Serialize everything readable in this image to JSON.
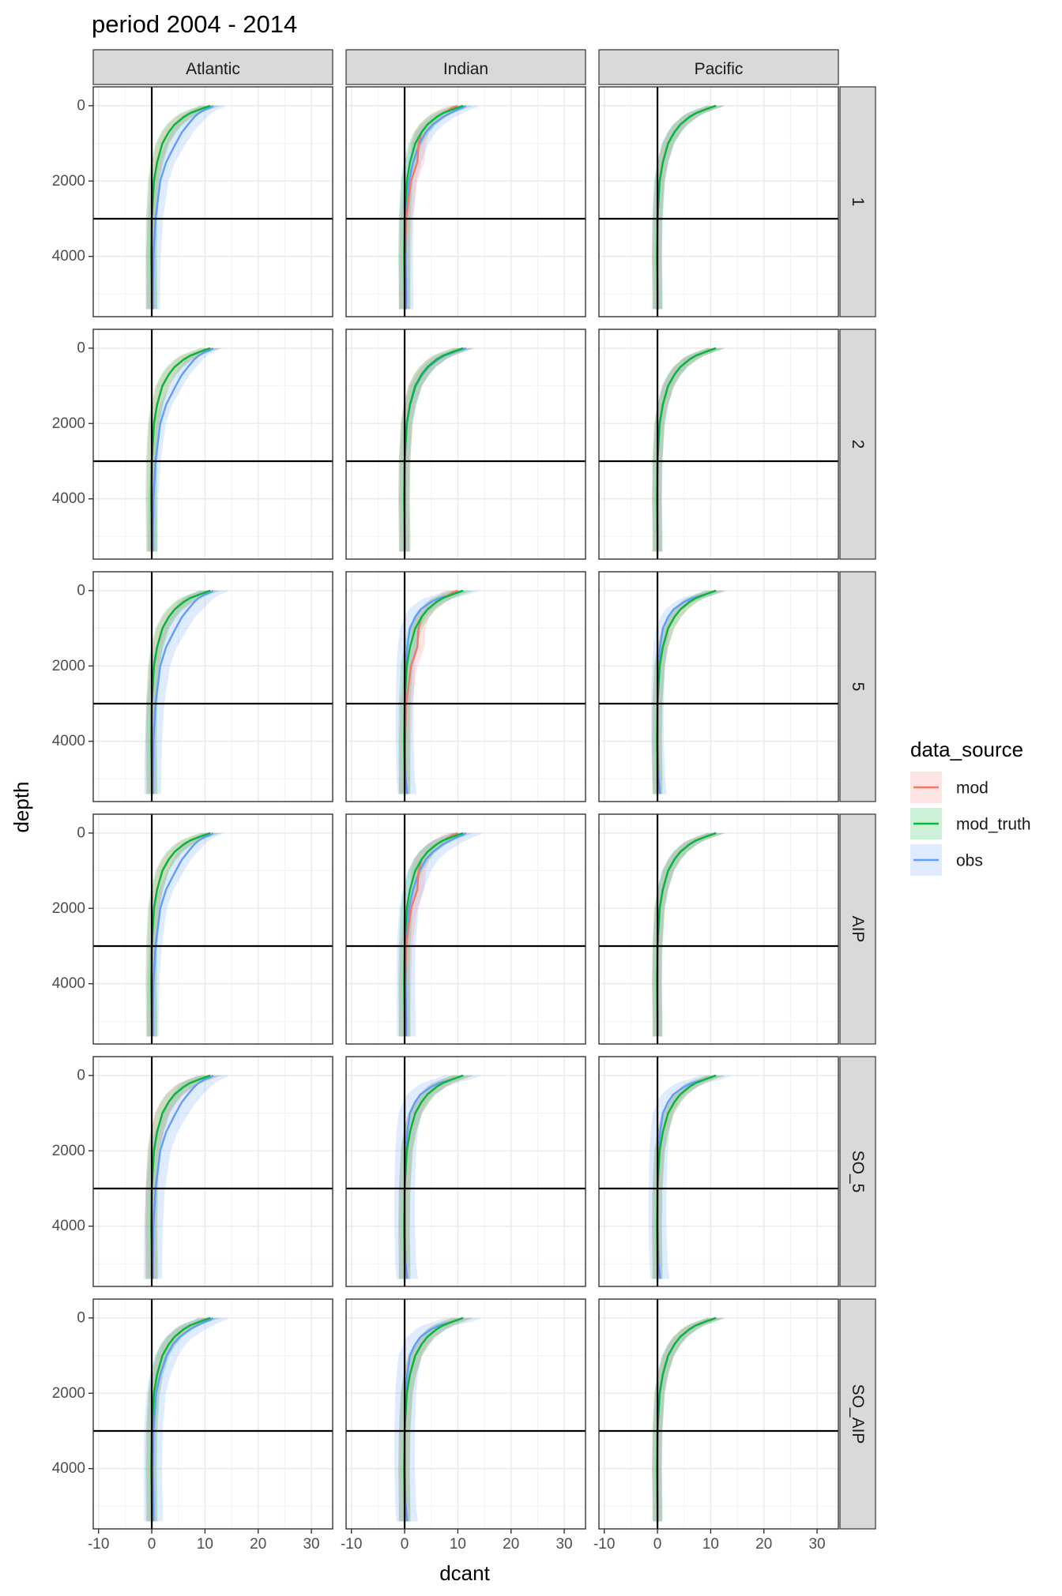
{
  "chart_data": {
    "type": "line",
    "title": "period 2004 - 2014",
    "xlabel": "dcant",
    "ylabel": "depth",
    "xlim": [
      -11,
      34
    ],
    "ylim": [
      5600,
      -500
    ],
    "y_reversed": true,
    "x_ticks": [
      -10,
      0,
      10,
      20,
      30
    ],
    "y_ticks": [
      0,
      2000,
      4000
    ],
    "x_tick_labels": [
      "-10",
      "0",
      "10",
      "20",
      "30"
    ],
    "y_tick_labels": [
      "0",
      "2000",
      "4000"
    ],
    "reference_lines": {
      "vline_x": 0,
      "hline_y": 3000
    },
    "grid": true,
    "columns": [
      "Atlantic",
      "Indian",
      "Pacific"
    ],
    "rows": [
      "1",
      "2",
      "5",
      "AIP",
      "SO_5",
      "SO_AIP"
    ],
    "legend": {
      "title": "data_source",
      "position": "right",
      "items": [
        {
          "label": "mod",
          "color": "#F8766D"
        },
        {
          "label": "mod_truth",
          "color": "#00BA38"
        },
        {
          "label": "obs",
          "color": "#619CFF"
        }
      ]
    },
    "depths": [
      0,
      50,
      100,
      200,
      300,
      500,
      700,
      1000,
      1500,
      2000,
      3000,
      4000,
      5000,
      5400
    ],
    "profile_shapes": {
      "standard": [
        11,
        10,
        9,
        7.2,
        6,
        4.3,
        3.2,
        2,
        1,
        0.4,
        0,
        -0.1,
        0,
        0
      ],
      "obs_deep": [
        11.5,
        11,
        10,
        8.8,
        8,
        6.8,
        5.7,
        4.5,
        2.7,
        1.6,
        0.7,
        0.3,
        0.2,
        0.2
      ],
      "obs_shallow_high": [
        11.5,
        11,
        10,
        8.5,
        7.2,
        5.3,
        4,
        2.8,
        1.6,
        0.8,
        0.3,
        0.2,
        0.3,
        0.3
      ],
      "obs_low_mid": [
        11,
        10,
        9,
        6.5,
        5,
        3,
        2,
        1,
        0.5,
        0.2,
        0,
        0,
        0.2,
        0.5
      ],
      "mod_mid_bump": [
        10,
        9,
        8.5,
        7.2,
        6,
        4.3,
        3.2,
        2.6,
        2.4,
        1.2,
        0.3,
        0.1,
        0,
        0
      ]
    },
    "series_by_panel": [
      [
        {
          "mod": [
            "standard",
            1.0,
            1.5
          ],
          "mod_truth": [
            "standard",
            1.0,
            1.8
          ],
          "obs": [
            "obs_deep",
            1.0,
            2.2
          ]
        },
        {
          "mod": [
            "mod_mid_bump",
            1.0,
            1.8
          ],
          "mod_truth": [
            "standard",
            1.0,
            1.8
          ],
          "obs": [
            "obs_shallow_high",
            1.0,
            2.2
          ]
        },
        {
          "mod": [
            "standard",
            1.0,
            1.4
          ],
          "mod_truth": [
            "standard",
            1.0,
            1.6
          ],
          "obs": [
            "standard",
            1.0,
            1.6
          ]
        }
      ],
      [
        {
          "mod": [
            "standard",
            1.0,
            1.5
          ],
          "mod_truth": [
            "standard",
            1.0,
            1.8
          ],
          "obs": [
            "obs_deep",
            1.0,
            1.5
          ]
        },
        {
          "mod": [
            "standard",
            1.0,
            1.8
          ],
          "mod_truth": [
            "standard",
            1.0,
            1.8
          ],
          "obs": [
            "standard",
            1.05,
            1.5
          ]
        },
        {
          "mod": [
            "standard",
            1.0,
            1.5
          ],
          "mod_truth": [
            "standard",
            1.0,
            1.6
          ],
          "obs": [
            "standard",
            1.0,
            1.4
          ]
        }
      ],
      [
        {
          "mod": [
            "standard",
            1.0,
            1.5
          ],
          "mod_truth": [
            "standard",
            1.0,
            1.8
          ],
          "obs": [
            "obs_deep",
            1.0,
            2.6
          ]
        },
        {
          "mod": [
            "mod_mid_bump",
            1.0,
            1.8
          ],
          "mod_truth": [
            "standard",
            1.0,
            1.8
          ],
          "obs": [
            "obs_low_mid",
            1.0,
            2.8
          ]
        },
        {
          "mod": [
            "standard",
            1.0,
            1.5
          ],
          "mod_truth": [
            "standard",
            1.0,
            1.6
          ],
          "obs": [
            "obs_low_mid",
            1.0,
            2.0
          ]
        }
      ],
      [
        {
          "mod": [
            "standard",
            1.0,
            1.5
          ],
          "mod_truth": [
            "standard",
            1.0,
            1.8
          ],
          "obs": [
            "obs_deep",
            1.0,
            1.8
          ]
        },
        {
          "mod": [
            "mod_mid_bump",
            1.0,
            1.8
          ],
          "mod_truth": [
            "standard",
            1.0,
            1.8
          ],
          "obs": [
            "obs_shallow_high",
            1.0,
            2.8
          ]
        },
        {
          "mod": [
            "standard",
            1.0,
            1.5
          ],
          "mod_truth": [
            "standard",
            1.0,
            1.6
          ],
          "obs": [
            "standard",
            1.0,
            1.4
          ]
        }
      ],
      [
        {
          "mod": [
            "standard",
            1.0,
            2.0
          ],
          "mod_truth": [
            "standard",
            1.0,
            1.8
          ],
          "obs": [
            "obs_deep",
            1.0,
            2.8
          ]
        },
        {
          "mod": [
            "standard",
            1.0,
            1.8
          ],
          "mod_truth": [
            "standard",
            1.0,
            1.8
          ],
          "obs": [
            "obs_low_mid",
            1.0,
            3.2
          ]
        },
        {
          "mod": [
            "standard",
            1.0,
            1.5
          ],
          "mod_truth": [
            "standard",
            1.0,
            1.6
          ],
          "obs": [
            "obs_low_mid",
            1.0,
            2.8
          ]
        }
      ],
      [
        {
          "mod": [
            "standard",
            1.0,
            1.5
          ],
          "mod_truth": [
            "standard",
            1.0,
            1.8
          ],
          "obs": [
            "obs_shallow_high",
            1.0,
            2.8
          ]
        },
        {
          "mod": [
            "standard",
            1.0,
            1.8
          ],
          "mod_truth": [
            "standard",
            1.0,
            1.8
          ],
          "obs": [
            "obs_low_mid",
            1.0,
            3.2
          ]
        },
        {
          "mod": [
            "standard",
            1.0,
            1.5
          ],
          "mod_truth": [
            "standard",
            1.0,
            1.6
          ],
          "obs": [
            "standard",
            1.0,
            1.4
          ]
        }
      ]
    ]
  }
}
